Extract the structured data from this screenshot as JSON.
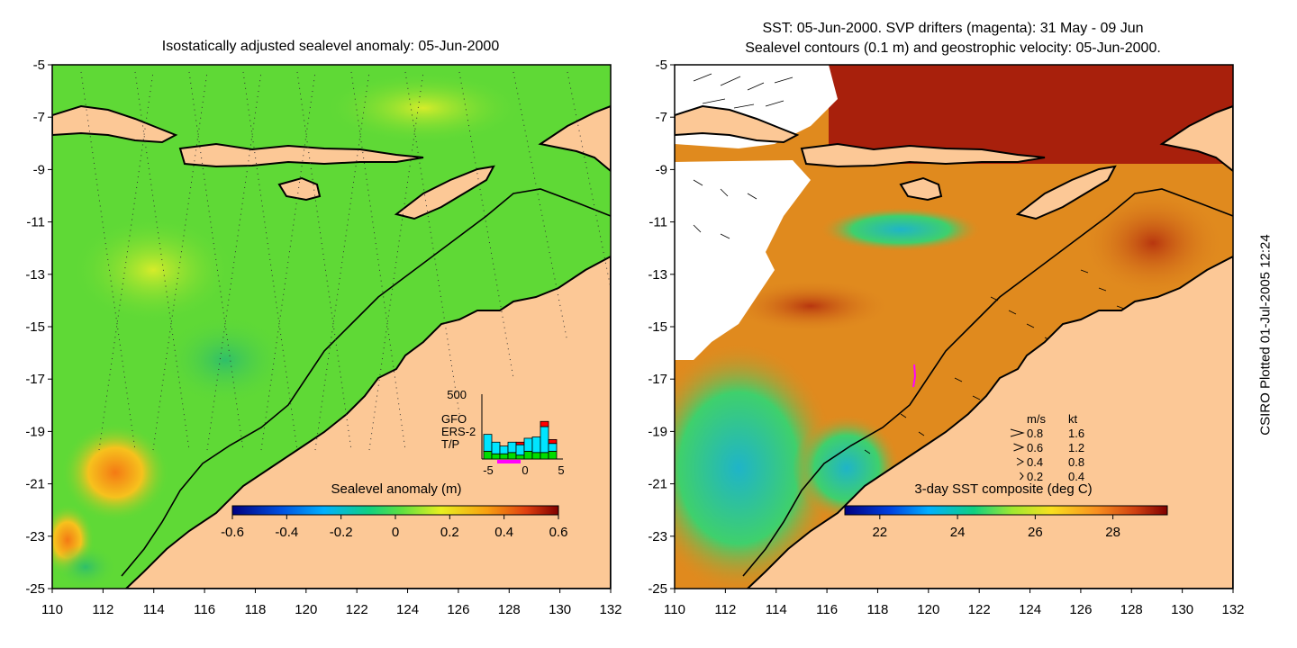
{
  "left_panel": {
    "title": "Isostatically adjusted sealevel anomaly: 05-Jun-2000",
    "colorbar": {
      "title": "Sealevel anomaly (m)",
      "ticks": [
        "-0.6",
        "-0.4",
        "-0.2",
        "0",
        "0.2",
        "0.4",
        "0.6"
      ]
    },
    "inset_histogram": {
      "ymax_label": "500",
      "xticks": [
        "-5",
        "0",
        "5"
      ],
      "legend": [
        {
          "label": "GFO",
          "color": "#ff0000"
        },
        {
          "label": "ERS-2",
          "color": "#00e5ff"
        },
        {
          "label": "T/P",
          "color": "#00dd00"
        }
      ],
      "bins": [
        {
          "tp": 60,
          "ers": 130,
          "gfo": 0
        },
        {
          "tp": 40,
          "ers": 90,
          "gfo": 0
        },
        {
          "tp": 40,
          "ers": 60,
          "gfo": 0
        },
        {
          "tp": 50,
          "ers": 80,
          "gfo": 0
        },
        {
          "tp": 30,
          "ers": 80,
          "gfo": 20
        },
        {
          "tp": 60,
          "ers": 100,
          "gfo": 0
        },
        {
          "tp": 50,
          "ers": 120,
          "gfo": 0
        },
        {
          "tp": 50,
          "ers": 200,
          "gfo": 40
        },
        {
          "tp": 60,
          "ers": 60,
          "gfo": 30
        }
      ]
    }
  },
  "right_panel": {
    "title_line1": "SST: 05-Jun-2000. SVP drifters (magenta): 31 May - 09 Jun",
    "title_line2": "Sealevel contours (0.1 m) and geostrophic velocity: 05-Jun-2000.",
    "colorbar": {
      "title": "3-day SST composite (deg C)",
      "ticks": [
        "22",
        "24",
        "26",
        "28"
      ]
    },
    "velocity_legend": {
      "header_ms": "m/s",
      "header_kt": "kt",
      "rows": [
        {
          "ms": "0.8",
          "kt": "1.6"
        },
        {
          "ms": "0.6",
          "kt": "1.2"
        },
        {
          "ms": "0.4",
          "kt": "0.8"
        },
        {
          "ms": "0.2",
          "kt": "0.4"
        }
      ]
    }
  },
  "axes": {
    "x_ticks": [
      "110",
      "112",
      "114",
      "116",
      "118",
      "120",
      "122",
      "124",
      "126",
      "128",
      "130",
      "132"
    ],
    "y_ticks": [
      "-5",
      "-7",
      "-9",
      "-11",
      "-13",
      "-15",
      "-17",
      "-19",
      "-21",
      "-23",
      "-25"
    ],
    "lon_range": [
      110,
      132
    ],
    "lat_range": [
      -25,
      -5
    ]
  },
  "credit": "CSIRO Plotted 01-Jul-2005 12:24",
  "colors": {
    "land": "#fcc896",
    "sla_base": "#5fd936",
    "sst_base": "#e08a1e",
    "sst_warm": "#a8200c",
    "drifter": "#ff00ff"
  }
}
